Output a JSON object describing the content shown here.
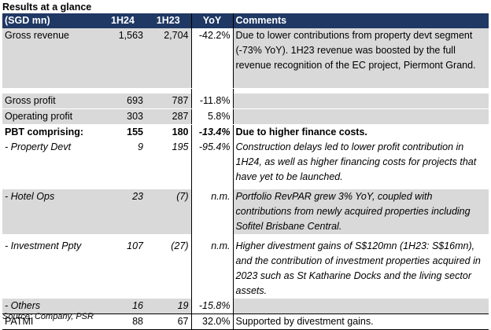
{
  "title": "Results at a glance",
  "headers": {
    "label": "(SGD mn)",
    "h1": "1H24",
    "h2": "1H23",
    "yoy": "YoY",
    "comments": "Comments"
  },
  "rows": [
    {
      "label": "Gross revenue",
      "h1": "1,563",
      "h2": "2,704",
      "yoy": "-42.2%",
      "comment": "Due to lower contributions from property devt segment (-73% YoY). 1H23 revenue was boosted by the full revenue recognition of the EC project, Piermont Grand."
    },
    {
      "label": "Gross profit",
      "h1": "693",
      "h2": "787",
      "yoy": "-11.8%",
      "comment": ""
    },
    {
      "label": "Operating profit",
      "h1": "303",
      "h2": "287",
      "yoy": "5.8%",
      "comment": ""
    },
    {
      "label": "PBT comprising:",
      "h1": "155",
      "h2": "180",
      "yoy": "-13.4%",
      "comment": "Due to higher finance costs."
    },
    {
      "label": " - Property Devt",
      "h1": "9",
      "h2": "195",
      "yoy": "-95.4%",
      "comment": "Construction delays led to lower profit contribution in 1H24, as well as higher financing costs for projects that have yet to be launched."
    },
    {
      "label": " - Hotel Ops",
      "h1": "23",
      "h2": "(7)",
      "yoy": "n.m.",
      "comment": "Portfolio RevPAR grew 3% YoY, coupled with contributions from newly acquired properties including Sofitel Brisbane Central."
    },
    {
      "label": " - Investment Ppty",
      "h1": "107",
      "h2": "(27)",
      "yoy": "n.m.",
      "comment": "Higher divestment gains of S$120mn (1H23: S$16mn), and the contribution of investment properties acquired in 2023 such as St Katharine Docks and the living sector assets."
    },
    {
      "label": " - Others",
      "h1": "16",
      "h2": "19",
      "yoy": "-15.8%",
      "comment": ""
    },
    {
      "label": "PATMI",
      "h1": "88",
      "h2": "67",
      "yoy": "32.0%",
      "comment": "Supported by divestment gains."
    }
  ],
  "source": "Source: Company, PSR"
}
